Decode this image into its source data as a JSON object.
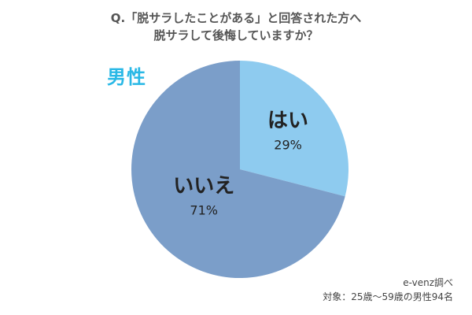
{
  "title": {
    "line1": "Q.「脱サラしたことがある」と回答された方へ",
    "line2": "脱サラして後悔していますか？"
  },
  "group_label": "男性",
  "chart_data": {
    "type": "pie",
    "slices": [
      {
        "label": "はい",
        "value": 29,
        "display": "29%",
        "color": "#8ecbef"
      },
      {
        "label": "いいえ",
        "value": 71,
        "display": "71%",
        "color": "#7b9ec9"
      }
    ],
    "start": "top",
    "direction": "clockwise"
  },
  "footer": {
    "source": "e-venz調べ",
    "sample": "対象：25歳〜59歳の男性94名"
  }
}
